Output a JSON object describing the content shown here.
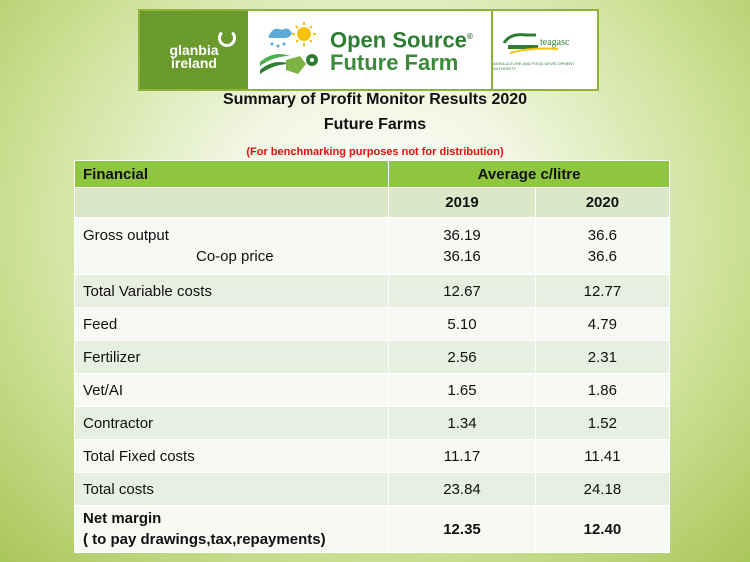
{
  "banner": {
    "glanbia_line1": "glanbia",
    "glanbia_line2": "ireland",
    "osff_line1": "Open Source",
    "osff_line2": "Future Farm",
    "osff_reg": "®",
    "teagasc_name": "teagasc",
    "teagasc_sub": "AGRICULTURE AND FOOD DEVELOPMENT AUTHORITY",
    "colors": {
      "green": "#6a9a2b",
      "dark_green": "#2e7d32"
    }
  },
  "title": {
    "line1": "Summary of Profit Monitor Results  2020",
    "line2": "Future Farms",
    "note": "(For benchmarking purposes not for distribution)"
  },
  "table": {
    "header": {
      "col1": "Financial",
      "col2": "Average  c/litre"
    },
    "years": [
      "2019",
      "2020"
    ],
    "gross": {
      "label": "Gross output",
      "sub_label": "Co-op price",
      "v2019": "36.19",
      "v2019_sub": "36.16",
      "v2020": "36.6",
      "v2020_sub": "36.6"
    },
    "rows": [
      {
        "label": "Total Variable costs",
        "v2019": "12.67",
        "v2020": "12.77"
      },
      {
        "label": "Feed",
        "v2019": "5.10",
        "v2020": "4.79"
      },
      {
        "label": "Fertilizer",
        "v2019": "2.56",
        "v2020": "2.31"
      },
      {
        "label": "Vet/AI",
        "v2019": "1.65",
        "v2020": "1.86"
      },
      {
        "label": "Contractor",
        "v2019": "1.34",
        "v2020": "1.52"
      },
      {
        "label": "Total Fixed costs",
        "v2019": "11.17",
        "v2020": "11.41"
      },
      {
        "label": "Total costs",
        "v2019": "23.84",
        "v2020": "24.18"
      }
    ],
    "net": {
      "label": "Net margin",
      "sub_label": " ( to pay drawings,tax,repayments)",
      "v2019": "12.35",
      "v2020": "12.40"
    },
    "colors": {
      "header": "#8ec63f",
      "band_dark": "#e8efe0",
      "band_light": "#f7f9f4",
      "years_row": "#dbe8c8"
    }
  }
}
